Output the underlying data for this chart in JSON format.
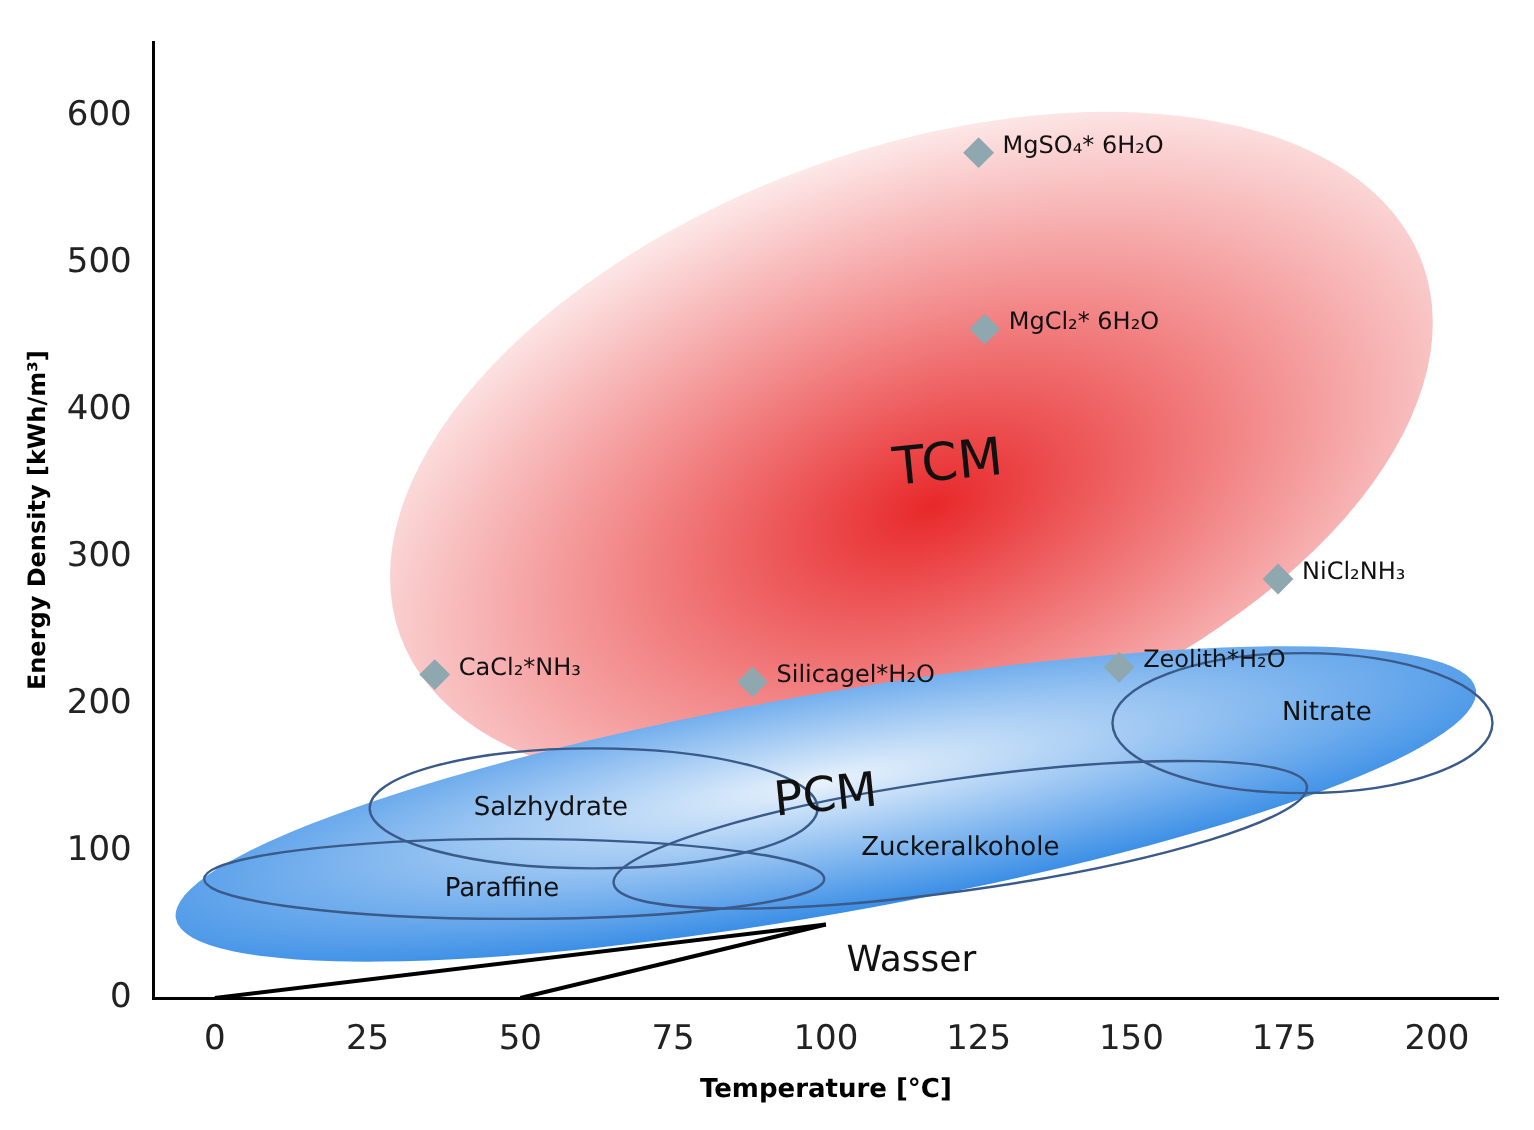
{
  "chart_data": {
    "type": "scatter",
    "xlabel": "Temperature [°C]",
    "ylabel": "Energy Density [kWh/m³]",
    "xlim": [
      -10,
      210
    ],
    "xticks": [
      0,
      25,
      50,
      75,
      100,
      125,
      150,
      175,
      200
    ],
    "ylim": [
      0,
      650
    ],
    "yticks": [
      0,
      100,
      200,
      300,
      400,
      500,
      600
    ],
    "grid": false,
    "legend": false,
    "series": [
      {
        "color": "#8fa8b0",
        "marker": "diamond",
        "x": [
          125,
          126,
          174,
          148,
          88,
          36
        ],
        "values": [
          575,
          455,
          285,
          225,
          215,
          220
        ]
      },
      {
        "type": "line",
        "color": "#000000",
        "x": [
          0,
          100
        ],
        "values": [
          0,
          50
        ]
      },
      {
        "type": "line",
        "color": "#000000",
        "x": [
          50,
          100
        ],
        "values": [
          0,
          50
        ]
      }
    ],
    "annotations": [
      {
        "text": "MgSO₄* 6H₂O",
        "x": 125,
        "y": 575
      },
      {
        "text": "MgCl₂* 6H₂O",
        "x": 126,
        "y": 455
      },
      {
        "text": "NiCl₂NH₃",
        "x": 174,
        "y": 285
      },
      {
        "text": "Zeolith*H₂O",
        "x": 148,
        "y": 225
      },
      {
        "text": "Silicagel*H₂O",
        "x": 88,
        "y": 215
      },
      {
        "text": "CaCl₂*NH₃",
        "x": 36,
        "y": 220
      },
      "TCM",
      "PCM",
      "Salzhydrate",
      "Paraffine",
      "Zuckeralkohole",
      "Nitrate",
      "Wasser"
    ]
  }
}
